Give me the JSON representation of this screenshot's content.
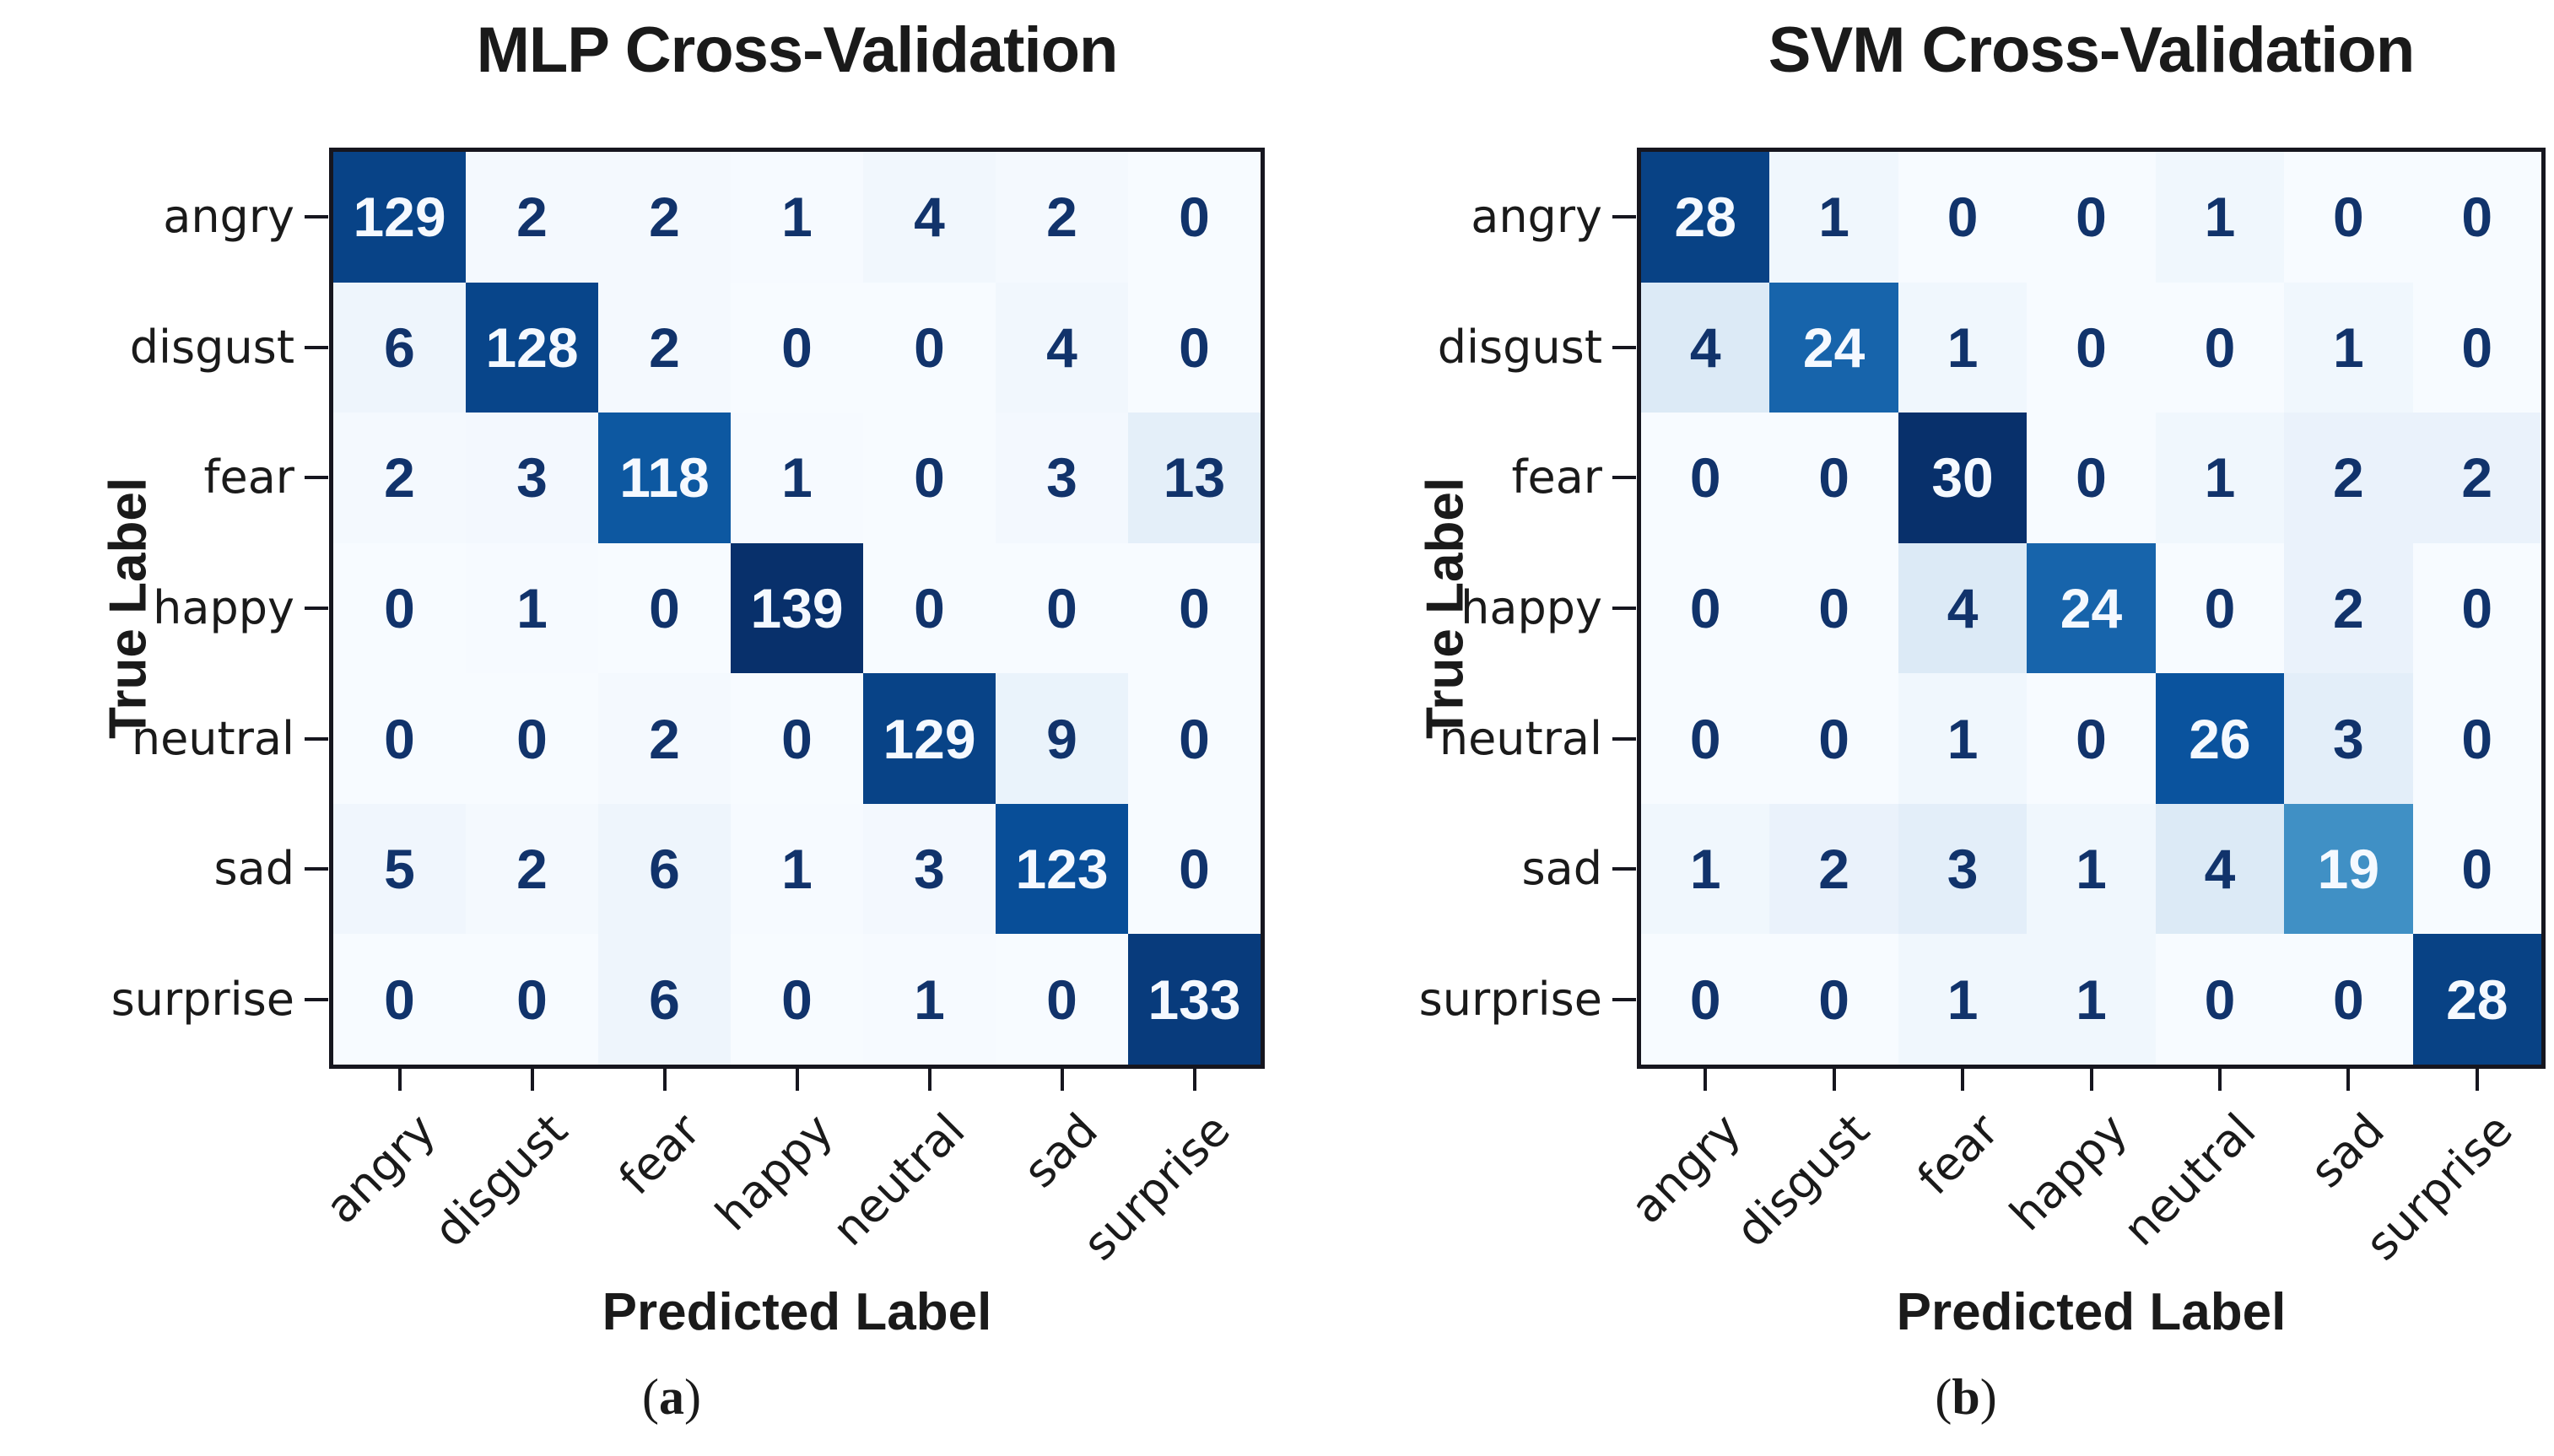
{
  "figure": {
    "panels": [
      {
        "title": "MLP Cross-Validation",
        "xlabel": "Predicted Label",
        "ylabel": "True Label",
        "caption": {
          "open": "(",
          "letter": "a",
          "close": ")"
        }
      },
      {
        "title": "SVM Cross-Validation",
        "xlabel": "Predicted Label",
        "ylabel": "True Label",
        "caption": {
          "open": "(",
          "letter": "b",
          "close": ")"
        }
      }
    ]
  },
  "chart_data": [
    {
      "type": "heatmap",
      "title": "MLP Cross-Validation",
      "xlabel": "Predicted Label",
      "ylabel": "True Label",
      "categories": [
        "angry",
        "disgust",
        "fear",
        "happy",
        "neutral",
        "sad",
        "surprise"
      ],
      "matrix": [
        [
          129,
          2,
          2,
          1,
          4,
          2,
          0
        ],
        [
          6,
          128,
          2,
          0,
          0,
          4,
          0
        ],
        [
          2,
          3,
          118,
          1,
          0,
          3,
          13
        ],
        [
          0,
          1,
          0,
          139,
          0,
          0,
          0
        ],
        [
          0,
          0,
          2,
          0,
          129,
          9,
          0
        ],
        [
          5,
          2,
          6,
          1,
          3,
          123,
          0
        ],
        [
          0,
          0,
          6,
          0,
          1,
          0,
          133
        ]
      ],
      "colormap": "Blues",
      "vmin": 0,
      "vmax": 139,
      "legend": "none",
      "grid": false
    },
    {
      "type": "heatmap",
      "title": "SVM Cross-Validation",
      "xlabel": "Predicted Label",
      "ylabel": "True Label",
      "categories": [
        "angry",
        "disgust",
        "fear",
        "happy",
        "neutral",
        "sad",
        "surprise"
      ],
      "matrix": [
        [
          28,
          1,
          0,
          0,
          1,
          0,
          0
        ],
        [
          4,
          24,
          1,
          0,
          0,
          1,
          0
        ],
        [
          0,
          0,
          30,
          0,
          1,
          2,
          2
        ],
        [
          0,
          0,
          4,
          24,
          0,
          2,
          0
        ],
        [
          0,
          0,
          1,
          0,
          26,
          3,
          0
        ],
        [
          1,
          2,
          3,
          1,
          4,
          19,
          0
        ],
        [
          0,
          0,
          1,
          1,
          0,
          0,
          28
        ]
      ],
      "colormap": "Blues",
      "vmin": 0,
      "vmax": 30,
      "legend": "none",
      "grid": false
    }
  ],
  "colors": {
    "cell_text_dark": "#11336b",
    "cell_text_light": "#f5f9ff",
    "axis_text": "#1a1a1a",
    "spine": "#16161f",
    "background": "#ffffff"
  }
}
